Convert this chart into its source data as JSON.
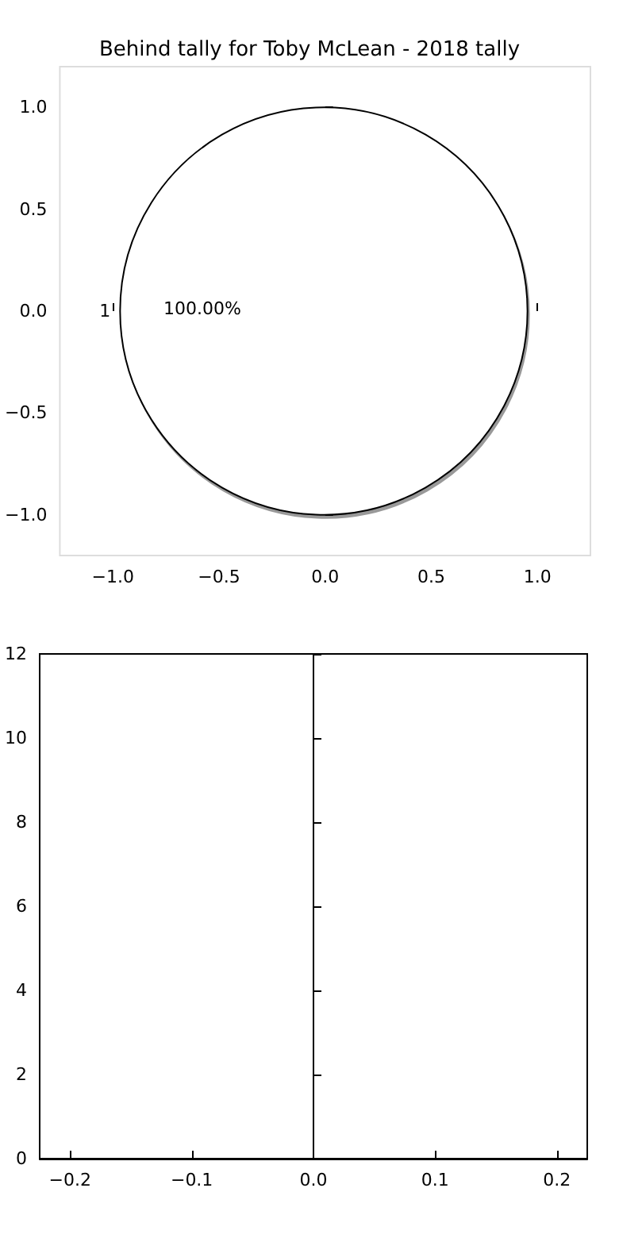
{
  "chart_data": [
    {
      "type": "pie",
      "title": "Behind tally for Toby McLean - 2018 tally",
      "categories": [
        "1"
      ],
      "values": [
        100
      ],
      "colors": [
        "#ffffff"
      ],
      "value_labels": [
        "100.00%"
      ]
    },
    {
      "type": "scatter",
      "xlim": [
        -1.25,
        1.25
      ],
      "xticks": [
        {
          "value": -1,
          "label": "−1.0"
        },
        {
          "value": -0.5,
          "label": "−0.5"
        },
        {
          "value": 0,
          "label": "0.0"
        },
        {
          "value": 0.5,
          "label": "0.5"
        },
        {
          "value": 1,
          "label": "1.0"
        }
      ],
      "ylim": [
        -1.2,
        1.2
      ],
      "yticks": [
        {
          "value": -1,
          "label": "−1.0"
        },
        {
          "value": -0.5,
          "label": "−0.5"
        },
        {
          "value": 0,
          "label": "0.0"
        },
        {
          "value": 0.5,
          "label": "0.5"
        },
        {
          "value": 1,
          "label": "1.0"
        }
      ]
    },
    {
      "type": "scatter",
      "xlim": [
        -0.225,
        0.225
      ],
      "xticks": [
        {
          "value": -0.2,
          "label": "−0.2"
        },
        {
          "value": -0.1,
          "label": "−0.1"
        },
        {
          "value": 0,
          "label": "0.0"
        },
        {
          "value": 0.1,
          "label": "0.1"
        },
        {
          "value": 0.2,
          "label": "0.2"
        }
      ],
      "ylim": [
        0,
        12
      ],
      "yticks": [
        0,
        2,
        4,
        6,
        8,
        10,
        12
      ]
    }
  ]
}
